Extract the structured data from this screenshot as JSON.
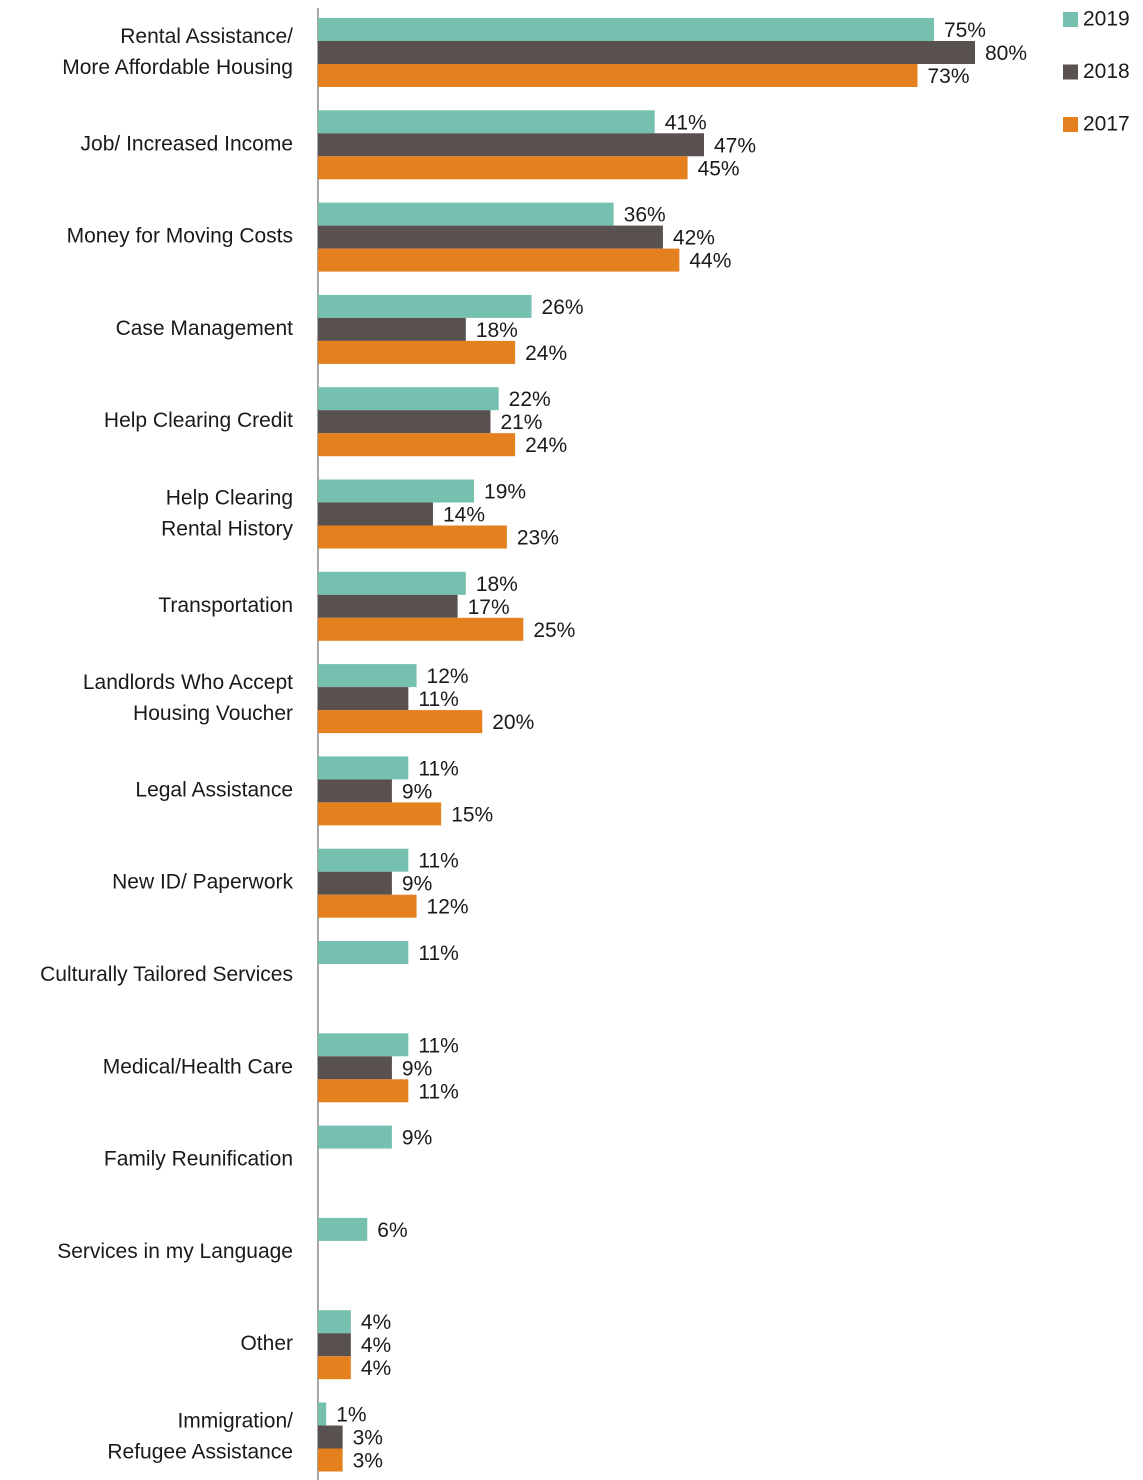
{
  "chart_data": {
    "type": "bar",
    "orientation": "horizontal",
    "categories": [
      "Rental Assistance/\nMore Affordable Housing",
      "Job/ Increased Income",
      "Money for Moving Costs",
      "Case Management",
      "Help Clearing Credit",
      "Help Clearing\nRental History",
      "Transportation",
      "Landlords Who Accept\nHousing Voucher",
      "Legal Assistance",
      "New ID/ Paperwork",
      "Culturally Tailored Services",
      "Medical/Health Care",
      "Family Reunification",
      "Services in my Language",
      "Other",
      "Immigration/\nRefugee Assistance"
    ],
    "series": [
      {
        "name": "2019",
        "color": "#76c0b0",
        "values": [
          75,
          41,
          36,
          26,
          22,
          19,
          18,
          12,
          11,
          11,
          11,
          11,
          9,
          6,
          4,
          1
        ],
        "value_labels": [
          "75%",
          "41%",
          "36%",
          "26%",
          "22%",
          "19%",
          "18%",
          "12%",
          "11%",
          "11%",
          "11%",
          "11%",
          "9%",
          "6%",
          "4%",
          "1%"
        ]
      },
      {
        "name": "2018",
        "color": "#595050",
        "values": [
          80,
          47,
          42,
          18,
          21,
          14,
          17,
          11,
          9,
          9,
          null,
          9,
          null,
          null,
          4,
          3
        ],
        "value_labels": [
          "80%",
          "47%",
          "42%",
          "18%",
          "21%",
          "14%",
          "17%",
          "11%",
          "9%",
          "9%",
          null,
          "9%",
          null,
          null,
          "4%",
          "3%"
        ]
      },
      {
        "name": "2017",
        "color": "#e5801e",
        "values": [
          73,
          45,
          44,
          24,
          24,
          23,
          25,
          20,
          15,
          12,
          null,
          11,
          null,
          null,
          4,
          3
        ],
        "value_labels": [
          "73%",
          "45%",
          "44%",
          "24%",
          "24%",
          "23%",
          "25%",
          "20%",
          "15%",
          "12%",
          null,
          "11%",
          null,
          null,
          "4%",
          "3%"
        ]
      }
    ],
    "xlim": [
      0,
      80
    ],
    "legend": "top-right"
  }
}
